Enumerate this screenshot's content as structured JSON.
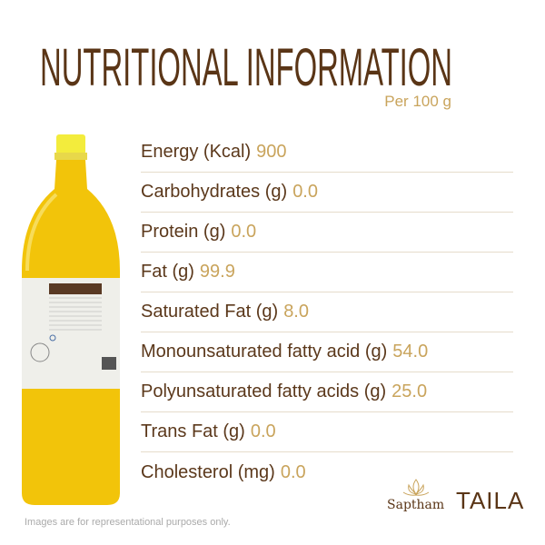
{
  "header": {
    "title": "NUTRITIONAL INFORMATION",
    "subtitle": "Per 100 g"
  },
  "nutrients": [
    {
      "label": "Energy (Kcal)",
      "value": "900"
    },
    {
      "label": "Carbohydrates (g)",
      "value": "0.0"
    },
    {
      "label": "Protein (g)",
      "value": "0.0"
    },
    {
      "label": "Fat (g)",
      "value": "99.9"
    },
    {
      "label": "Saturated Fat (g)",
      "value": "8.0"
    },
    {
      "label": "Monounsaturated fatty acid (g)",
      "value": "54.0"
    },
    {
      "label": "Polyunsaturated fatty acids (g)",
      "value": "25.0"
    },
    {
      "label": "Trans Fat (g)",
      "value": "0.0"
    },
    {
      "label": "Cholesterol (mg)",
      "value": "0.0"
    }
  ],
  "brand": {
    "primary": "Saptham",
    "secondary": "TAILA"
  },
  "footer": {
    "disclaimer": "Images are for representational purposes only."
  },
  "colors": {
    "brown": "#5a3516",
    "gold": "#c9a45c",
    "oil": "#f2c40a"
  }
}
